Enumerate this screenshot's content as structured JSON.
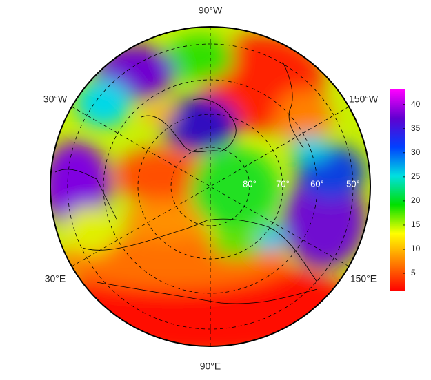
{
  "chart_data": {
    "type": "polar-map",
    "longitude_labels": [
      "90°W",
      "30°W",
      "150°W",
      "30°E",
      "150°E",
      "90°E"
    ],
    "latitude_labels": [
      "80°",
      "70°",
      "60°",
      "50°"
    ],
    "colorbar": {
      "range": [
        1.3,
        43.1
      ],
      "ticks": [
        5,
        10,
        15,
        20,
        25,
        30,
        35,
        40
      ],
      "colors": [
        "#ff0000",
        "#ff8000",
        "#ffff00",
        "#00e000",
        "#00e0e0",
        "#0040ff",
        "#6000d0",
        "#ff00ff"
      ]
    }
  }
}
